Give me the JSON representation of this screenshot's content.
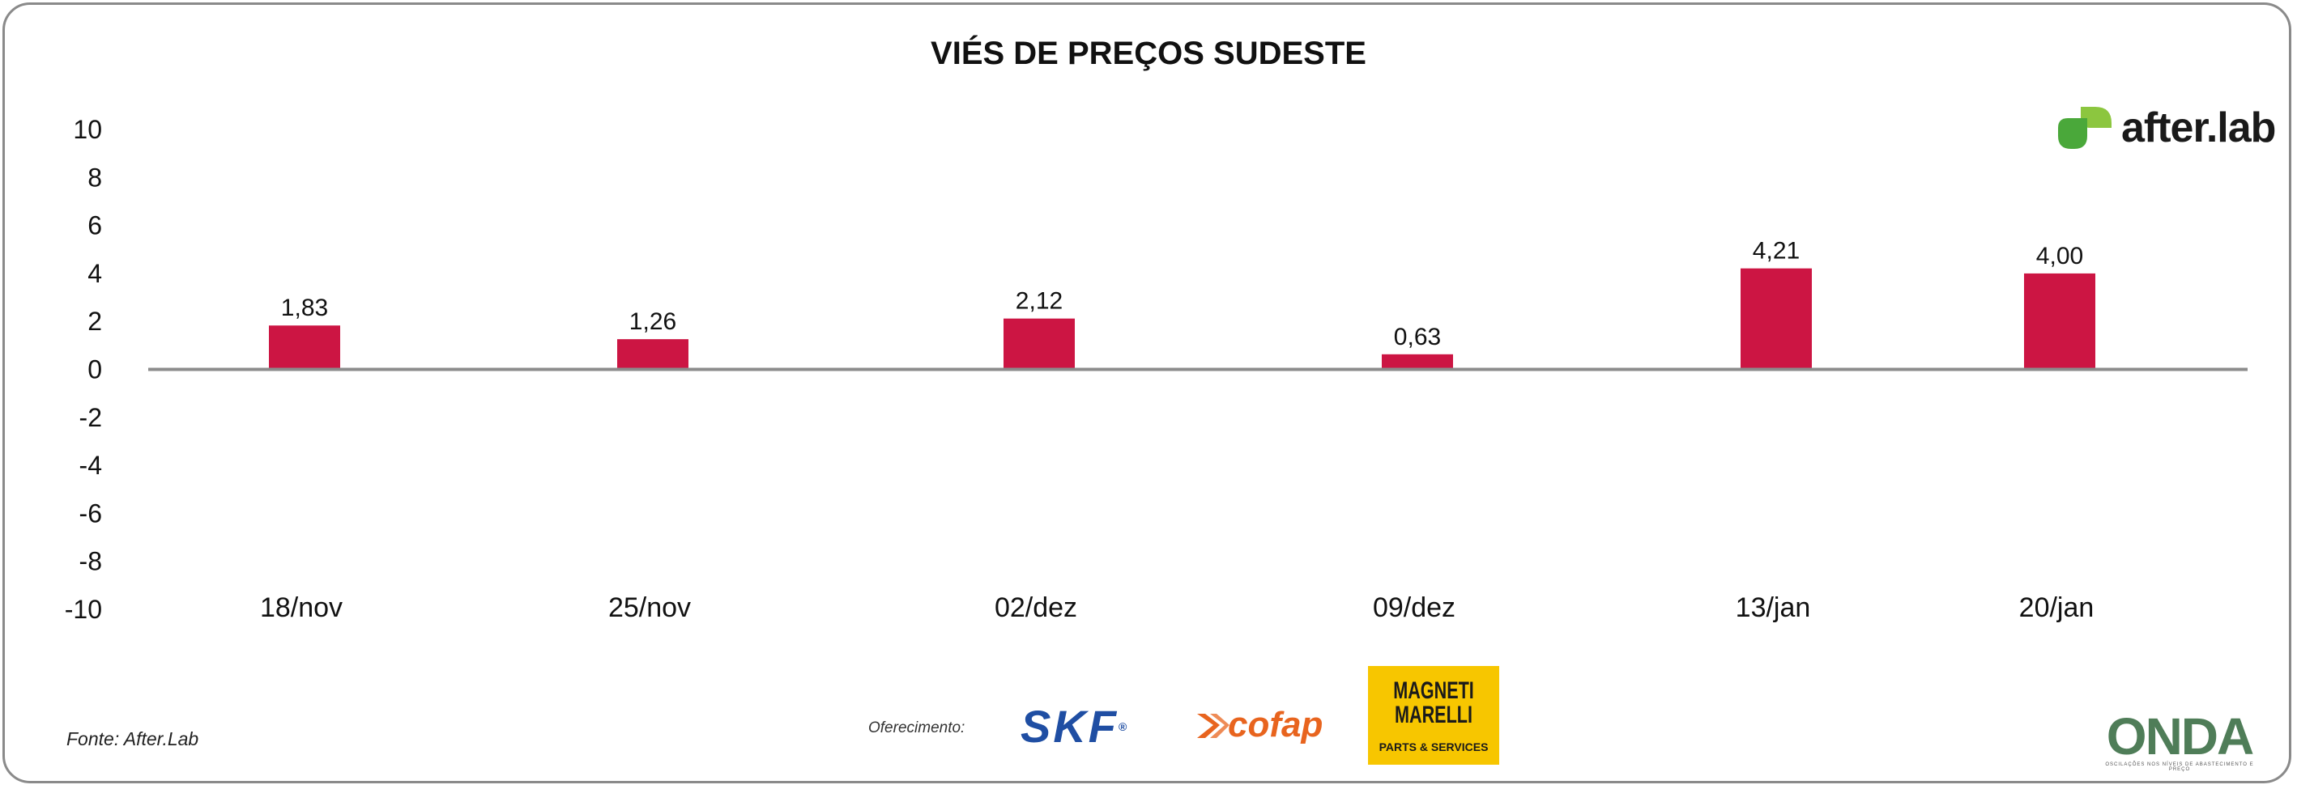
{
  "chart_data": {
    "type": "bar",
    "title": "VIÉS DE PREÇOS SUDESTE",
    "xlabel": "",
    "ylabel": "",
    "categories": [
      "18/nov",
      "25/nov",
      "02/dez",
      "09/dez",
      "13/jan",
      "20/jan"
    ],
    "values": [
      1.83,
      1.26,
      2.12,
      0.63,
      4.21,
      4.0
    ],
    "data_labels": [
      "1,83",
      "1,26",
      "2,12",
      "0,63",
      "4,21",
      "4,00"
    ],
    "y_ticks": [
      "10",
      "8",
      "6",
      "4",
      "2",
      "0",
      "-2",
      "-4",
      "-6",
      "-8",
      "-10"
    ],
    "ylim": [
      -10,
      10
    ],
    "grid": false,
    "legend": "none",
    "bar_color": "#cc1543",
    "axis_color": "#8c8c8c"
  },
  "brand": {
    "logo_icon": "after-lab-logo-icon",
    "name": "after.lab",
    "accent": "#6cbd3c"
  },
  "footer": {
    "source": "Fonte: After.Lab",
    "sponsor_label": "Oferecimento:",
    "sponsors": {
      "skf": "SKF",
      "cofap": "cofap",
      "magneti_line1": "MAGNETI",
      "magneti_line2": "MARELLI",
      "magneti_sub": "PARTS & SERVICES"
    },
    "onda": {
      "name": "ONDA",
      "tagline": "OSCILAÇÕES NOS NÍVEIS DE ABASTECIMENTO E PREÇO"
    }
  }
}
